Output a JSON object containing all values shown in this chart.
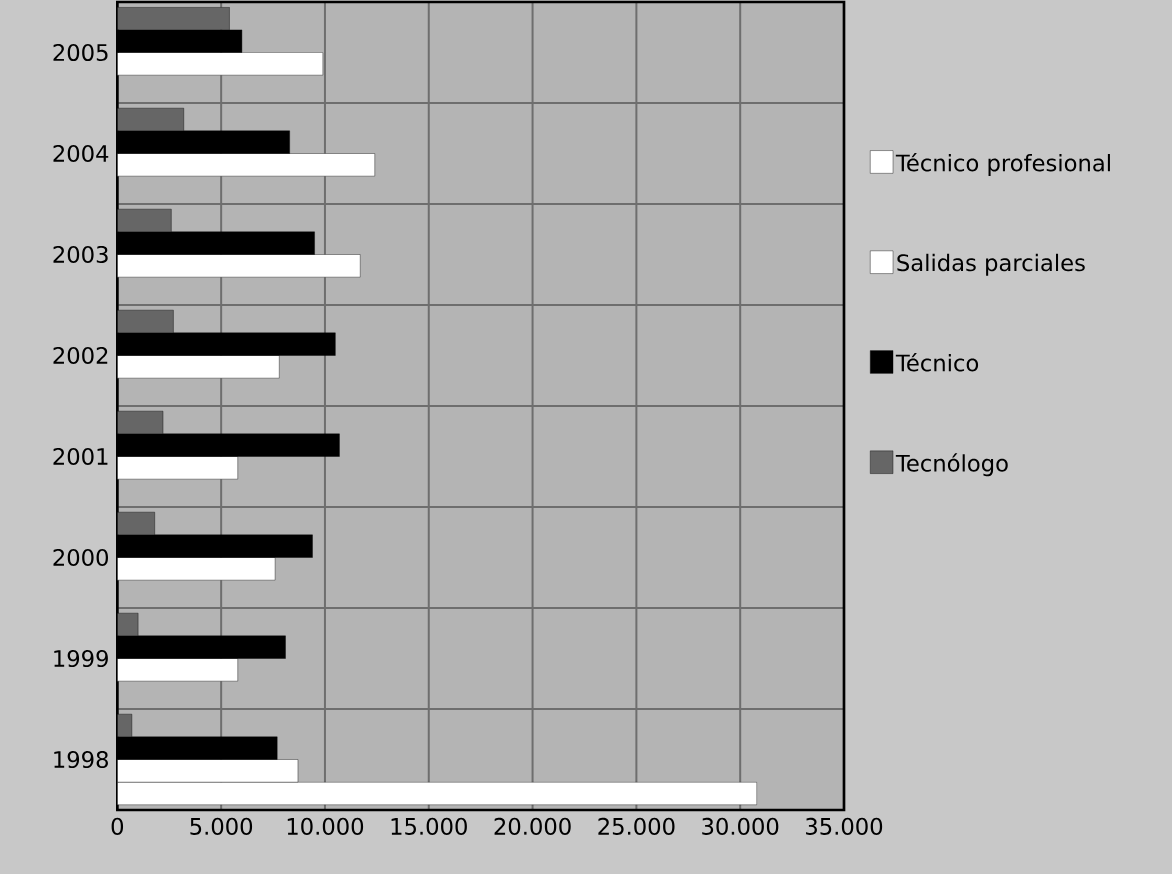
{
  "chart_data": {
    "type": "bar",
    "orientation": "horizontal",
    "categories": [
      "2005",
      "2004",
      "2003",
      "2002",
      "2001",
      "2000",
      "1999",
      "1998"
    ],
    "series": [
      {
        "name": "Técnico profesional",
        "color": "#ffffff",
        "values": [
          null,
          null,
          null,
          null,
          null,
          null,
          null,
          30800
        ]
      },
      {
        "name": "Salidas parciales",
        "color": "#ffffff",
        "values": [
          9900,
          12400,
          11700,
          7800,
          5800,
          7600,
          5800,
          8700
        ]
      },
      {
        "name": "Técnico",
        "color": "#000000",
        "values": [
          6000,
          8300,
          9500,
          10500,
          10700,
          9400,
          8100,
          7700
        ]
      },
      {
        "name": "Tecnólogo",
        "color": "#666666",
        "values": [
          5400,
          3200,
          2600,
          2700,
          2200,
          1800,
          1000,
          700
        ]
      }
    ],
    "xlim": [
      0,
      35000
    ],
    "xticks": [
      0,
      {
        "value": 5000,
        "label": "5.000"
      },
      {
        "value": 10000,
        "label": "10.000"
      },
      {
        "value": 15000,
        "label": "15.000"
      },
      {
        "value": 20000,
        "label": "20.000"
      },
      {
        "value": 25000,
        "label": "25.000"
      },
      {
        "value": 30000,
        "label": "30.000"
      },
      {
        "value": 35000,
        "label": "35.000"
      }
    ],
    "grid": true,
    "legend": "right"
  }
}
